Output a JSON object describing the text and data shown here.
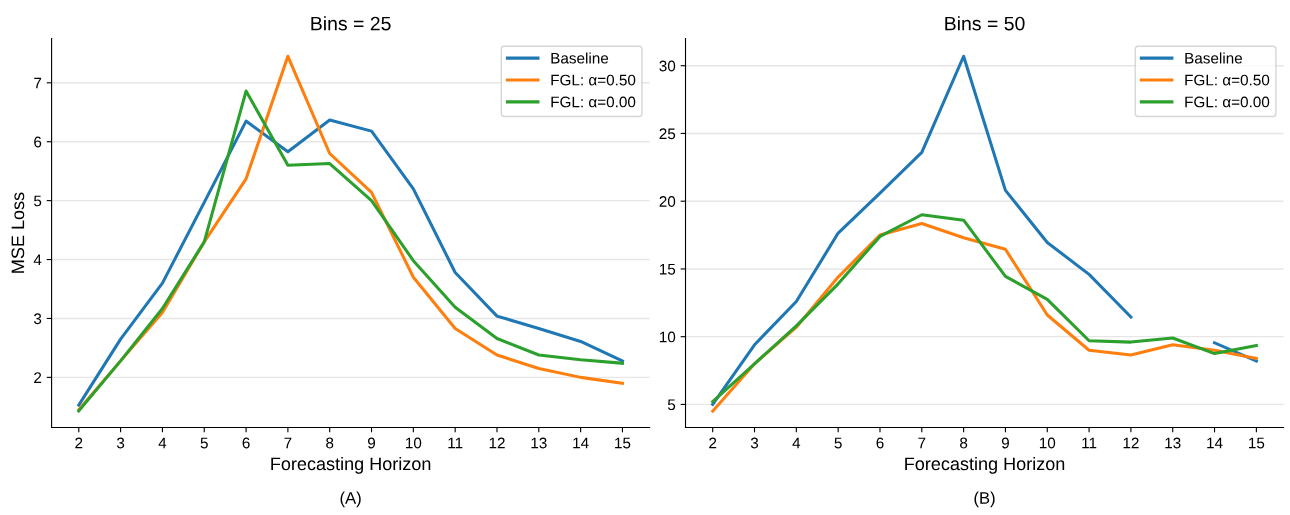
{
  "chart_data": [
    {
      "type": "line",
      "title": "Bins = 25",
      "xlabel": "Forecasting Horizon",
      "ylabel": "MSE Loss",
      "annotations": [
        "(A)"
      ],
      "x": [
        2,
        3,
        4,
        5,
        6,
        7,
        8,
        9,
        10,
        11,
        12,
        13,
        14,
        15
      ],
      "xlim": [
        1.35,
        15.65
      ],
      "xticks": [
        2,
        3,
        4,
        5,
        6,
        7,
        8,
        9,
        10,
        11,
        12,
        13,
        14,
        15
      ],
      "ylim": [
        1.15,
        7.75
      ],
      "yticks": [
        2,
        3,
        4,
        5,
        6,
        7
      ],
      "grid": "y",
      "legend": "top right",
      "marker": "none",
      "line_style": "solid",
      "series": [
        {
          "name": "Baseline",
          "color": "#1f77b4",
          "values": [
            1.53,
            2.65,
            3.6,
            4.97,
            6.35,
            5.83,
            6.37,
            6.18,
            5.2,
            3.78,
            3.04,
            2.83,
            2.61,
            2.28
          ]
        },
        {
          "name": "FGL: α=0.50",
          "color": "#ff7f0e",
          "values": [
            1.45,
            2.28,
            3.1,
            4.3,
            5.37,
            7.45,
            5.8,
            5.14,
            3.7,
            2.83,
            2.38,
            2.15,
            2.0,
            1.9
          ]
        },
        {
          "name": "FGL: α=0.00",
          "color": "#2ca02c",
          "values": [
            1.43,
            2.28,
            3.17,
            4.3,
            6.86,
            5.6,
            5.63,
            5.0,
            3.98,
            3.19,
            2.66,
            2.38,
            2.3,
            2.24
          ]
        }
      ]
    },
    {
      "type": "line",
      "title": "Bins = 50",
      "xlabel": "Forecasting Horizon",
      "annotations": [
        "(B)"
      ],
      "x": [
        2,
        3,
        4,
        5,
        6,
        7,
        8,
        9,
        10,
        11,
        12,
        13,
        14,
        15
      ],
      "xlim": [
        1.35,
        15.65
      ],
      "xticks": [
        2,
        3,
        4,
        5,
        6,
        7,
        8,
        9,
        10,
        11,
        12,
        13,
        14,
        15
      ],
      "ylim": [
        3.3,
        32.0
      ],
      "yticks": [
        5,
        10,
        15,
        20,
        25,
        30
      ],
      "grid": "y",
      "legend": "top right",
      "marker": "none",
      "line_style": "solid",
      "series": [
        {
          "name": "Baseline",
          "color": "#1f77b4",
          "values": [
            5.0,
            9.4,
            12.6,
            17.65,
            20.6,
            23.6,
            30.7,
            20.8,
            16.95,
            14.6,
            11.45,
            null,
            9.55,
            8.2
          ]
        },
        {
          "name": "FGL: α=0.50",
          "color": "#ff7f0e",
          "values": [
            4.5,
            8.0,
            10.7,
            14.4,
            17.5,
            18.35,
            17.3,
            16.45,
            11.6,
            9.0,
            8.65,
            9.4,
            9.0,
            8.4
          ]
        },
        {
          "name": "FGL: α=0.00",
          "color": "#2ca02c",
          "values": [
            5.2,
            8.0,
            10.8,
            13.9,
            17.4,
            19.0,
            18.6,
            14.45,
            12.75,
            9.7,
            9.6,
            9.9,
            8.75,
            9.35
          ]
        }
      ]
    }
  ]
}
